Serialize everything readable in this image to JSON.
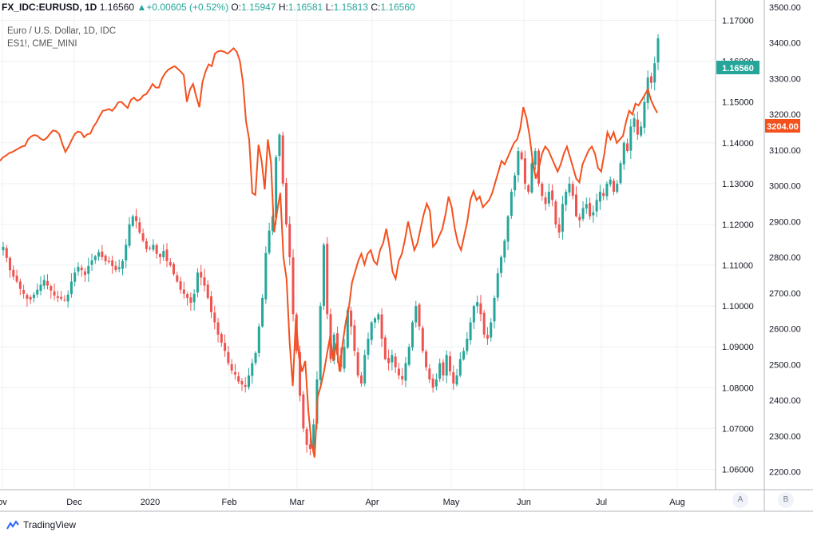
{
  "header": {
    "symbol": "FX_IDC:EURUSD, 1D",
    "price": "1.16560",
    "change_arrow": "▲",
    "change": "+0.00605 (+0.52%)",
    "o_label": "O:",
    "o": "1.15947",
    "h_label": "H:",
    "h": "1.16581",
    "l_label": "L:",
    "l": "1.15813",
    "c_label": "C:",
    "c": "1.16560"
  },
  "legend": {
    "main": "Euro / U.S. Dollar, 1D, IDC",
    "compare": "ES1!, CME_MINI"
  },
  "axis_buttons": {
    "a": "A",
    "b": "B"
  },
  "footer": {
    "brand": "TradingView"
  },
  "colors": {
    "up": "#26a69a",
    "down": "#ef5350",
    "compare": "#f4511e",
    "grid": "#eef0f3"
  },
  "chart_data": {
    "type": "candlestick",
    "x_ticks": [
      "ov",
      "Dec",
      "2020",
      "Feb",
      "Mar",
      "Apr",
      "May",
      "Jun",
      "Jul",
      "Aug"
    ],
    "y_left": {
      "ticks": [
        "1.06000",
        "1.07000",
        "1.08000",
        "1.09000",
        "1.10000",
        "1.11000",
        "1.12000",
        "1.13000",
        "1.14000",
        "1.15000",
        "1.16000",
        "1.17000"
      ],
      "range": [
        1.055,
        1.175
      ],
      "last_label": "1.16560"
    },
    "y_right": {
      "ticks": [
        "2200.00",
        "2300.00",
        "2400.00",
        "2500.00",
        "2600.00",
        "2700.00",
        "2800.00",
        "2900.00",
        "3000.00",
        "3100.00",
        "3200.00",
        "3300.00",
        "3400.00",
        "3500.00"
      ],
      "range": [
        2150,
        3520
      ],
      "last_label": "3204.00"
    },
    "eurusd_closes": [
      1.1145,
      1.1118,
      1.1088,
      1.1072,
      1.106,
      1.1042,
      1.103,
      1.1018,
      1.1016,
      1.1028,
      1.104,
      1.1052,
      1.1064,
      1.105,
      1.1038,
      1.1026,
      1.102,
      1.1018,
      1.1015,
      1.1028,
      1.106,
      1.1082,
      1.1096,
      1.1088,
      1.1076,
      1.1098,
      1.1112,
      1.1122,
      1.1132,
      1.112,
      1.111,
      1.1108,
      1.1098,
      1.1088,
      1.1095,
      1.111,
      1.115,
      1.12,
      1.122,
      1.1208,
      1.118,
      1.116,
      1.114,
      1.1142,
      1.115,
      1.1128,
      1.112,
      1.1135,
      1.111,
      1.11,
      1.1078,
      1.106,
      1.104,
      1.103,
      1.102,
      1.1008,
      1.103,
      1.1082,
      1.107,
      1.105,
      1.102,
      1.0985,
      1.096,
      1.093,
      1.091,
      1.089,
      1.086,
      1.0842,
      1.0832,
      1.0815,
      1.0808,
      1.0802,
      1.083,
      1.086,
      1.0885,
      1.095,
      1.102,
      1.113,
      1.1185,
      1.122,
      1.1365,
      1.142,
      1.13,
      1.12,
      1.112,
      1.098,
      1.089,
      1.078,
      1.07,
      1.066,
      1.065,
      1.071,
      1.082,
      1.1,
      1.115,
      1.098,
      1.087,
      1.093,
      1.088,
      1.085,
      1.09,
      1.099,
      1.095,
      1.089,
      1.083,
      1.081,
      1.088,
      1.092,
      1.096,
      1.097,
      1.098,
      1.092,
      1.087,
      1.086,
      1.088,
      1.085,
      1.083,
      1.082,
      1.086,
      1.09,
      1.096,
      1.1,
      1.095,
      1.089,
      1.085,
      1.082,
      1.08,
      1.082,
      1.086,
      1.083,
      1.088,
      1.084,
      1.081,
      1.083,
      1.087,
      1.089,
      1.092,
      1.096,
      1.1,
      1.101,
      1.098,
      1.093,
      1.092,
      1.096,
      1.102,
      1.108,
      1.112,
      1.116,
      1.122,
      1.128,
      1.132,
      1.138,
      1.136,
      1.13,
      1.128,
      1.135,
      1.138,
      1.13,
      1.127,
      1.125,
      1.128,
      1.126,
      1.12,
      1.118,
      1.125,
      1.128,
      1.13,
      1.127,
      1.122,
      1.121,
      1.124,
      1.125,
      1.122,
      1.123,
      1.126,
      1.128,
      1.127,
      1.13,
      1.131,
      1.128,
      1.13,
      1.135,
      1.14,
      1.138,
      1.144,
      1.146,
      1.142,
      1.144,
      1.15,
      1.156,
      1.1547,
      1.1595,
      1.1656
    ],
    "es1_closes": [
      3070,
      3080,
      3085,
      3092,
      3095,
      3100,
      3105,
      3110,
      3112,
      3130,
      3138,
      3142,
      3140,
      3132,
      3128,
      3134,
      3145,
      3155,
      3153,
      3145,
      3118,
      3095,
      3110,
      3128,
      3145,
      3152,
      3150,
      3136,
      3144,
      3146,
      3165,
      3178,
      3195,
      3210,
      3212,
      3215,
      3210,
      3220,
      3234,
      3235,
      3226,
      3218,
      3240,
      3247,
      3238,
      3242,
      3253,
      3257,
      3270,
      3285,
      3275,
      3275,
      3300,
      3315,
      3325,
      3330,
      3335,
      3328,
      3320,
      3310,
      3235,
      3270,
      3285,
      3250,
      3220,
      3290,
      3320,
      3340,
      3335,
      3370,
      3376,
      3378,
      3375,
      3370,
      3377,
      3385,
      3375,
      3350,
      3290,
      3180,
      3130,
      2980,
      2975,
      3115,
      3070,
      2990,
      3130,
      3065,
      2870,
      2930,
      2980,
      2800,
      2740,
      2560,
      2440,
      2630,
      2520,
      2480,
      2510,
      2370,
      2280,
      2240,
      2410,
      2440,
      2480,
      2530,
      2580,
      2510,
      2560,
      2480,
      2560,
      2620,
      2660,
      2730,
      2760,
      2790,
      2810,
      2780,
      2810,
      2820,
      2790,
      2780,
      2820,
      2840,
      2880,
      2830,
      2760,
      2740,
      2790,
      2810,
      2850,
      2900,
      2860,
      2820,
      2840,
      2880,
      2920,
      2950,
      2930,
      2830,
      2840,
      2860,
      2880,
      2920,
      2970,
      2940,
      2880,
      2840,
      2820,
      2860,
      2900,
      2960,
      2985,
      2960,
      2970,
      2940,
      2950,
      2960,
      2980,
      3010,
      3040,
      3070,
      3060,
      3080,
      3100,
      3120,
      3130,
      3160,
      3220,
      3190,
      3140,
      3070,
      3020,
      3050,
      3090,
      3110,
      3100,
      3080,
      3060,
      3040,
      3060,
      3090,
      3110,
      3080,
      3050,
      3020,
      3010,
      3060,
      3080,
      3100,
      3110,
      3090,
      3050,
      3040,
      3090,
      3150,
      3130,
      3150,
      3120,
      3130,
      3140,
      3180,
      3210,
      3200,
      3230,
      3225,
      3240,
      3255,
      3270,
      3240,
      3220,
      3204
    ]
  }
}
